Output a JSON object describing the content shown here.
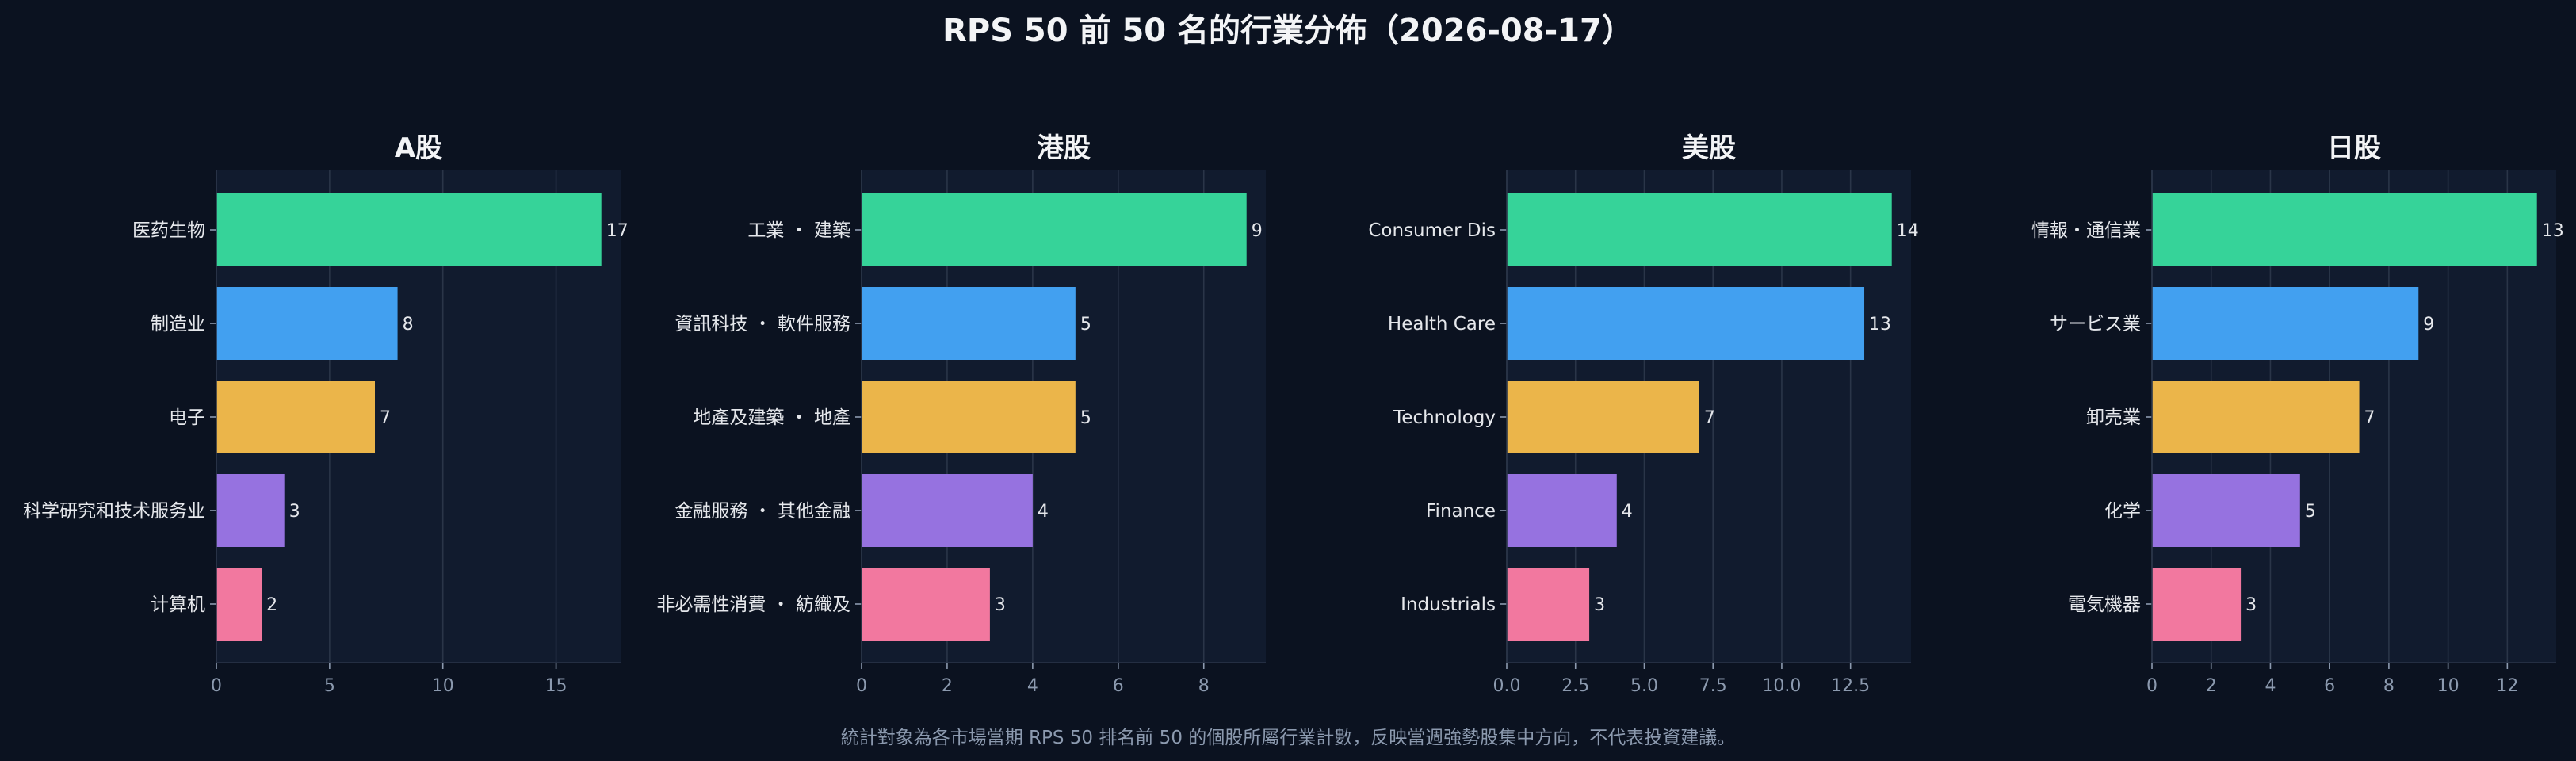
{
  "title": "RPS 50 前 50 名的行業分佈（2026-08-17）",
  "footnote": "統計對象為各市場當期 RPS 50 排名前 50 的個股所屬行業計數，反映當週強勢股集中方向，不代表投資建議。",
  "colors": {
    "background": "#0b1220",
    "panel": "#111b2e",
    "grid": "#2a3548",
    "text": "#e5e7eb",
    "muted": "#8c9aaf",
    "bars": [
      "#36d399",
      "#42a0f0",
      "#ebb54a",
      "#9672e0",
      "#f2789f"
    ]
  },
  "chart_data": [
    {
      "type": "bar",
      "orientation": "horizontal",
      "title": "A股",
      "categories": [
        "医药生物",
        "制造业",
        "电子",
        "科学研究和技术服务业",
        "计算机"
      ],
      "values": [
        17,
        8,
        7,
        3,
        2
      ],
      "xlim": [
        0,
        17.85
      ],
      "xticks": [
        0,
        5,
        10,
        15
      ],
      "xtick_labels": [
        "0",
        "5",
        "10",
        "15"
      ],
      "grid": true
    },
    {
      "type": "bar",
      "orientation": "horizontal",
      "title": "港股",
      "categories": [
        "工業 ・ 建築",
        "資訊科技 ・ 軟件服務",
        "地產及建築 ・ 地產",
        "金融服務 ・ 其他金融",
        "非必需性消費 ・ 紡織及"
      ],
      "values": [
        9,
        5,
        5,
        4,
        3
      ],
      "xlim": [
        0,
        9.45
      ],
      "xticks": [
        0,
        2,
        4,
        6,
        8
      ],
      "xtick_labels": [
        "0",
        "2",
        "4",
        "6",
        "8"
      ],
      "grid": true
    },
    {
      "type": "bar",
      "orientation": "horizontal",
      "title": "美股",
      "categories": [
        "Consumer Dis",
        "Health Care",
        "Technology",
        "Finance",
        "Industrials"
      ],
      "values": [
        14,
        13,
        7,
        4,
        3
      ],
      "xlim": [
        0,
        14.7
      ],
      "xticks": [
        0,
        2.5,
        5,
        7.5,
        10,
        12.5
      ],
      "xtick_labels": [
        "0.0",
        "2.5",
        "5.0",
        "7.5",
        "10.0",
        "12.5"
      ],
      "grid": true
    },
    {
      "type": "bar",
      "orientation": "horizontal",
      "title": "日股",
      "categories": [
        "情報・通信業",
        "サービス業",
        "卸売業",
        "化学",
        "電気機器"
      ],
      "values": [
        13,
        9,
        7,
        5,
        3
      ],
      "xlim": [
        0,
        13.65
      ],
      "xticks": [
        0,
        2,
        4,
        6,
        8,
        10,
        12
      ],
      "xtick_labels": [
        "0",
        "2",
        "4",
        "6",
        "8",
        "10",
        "12"
      ],
      "grid": true
    }
  ]
}
